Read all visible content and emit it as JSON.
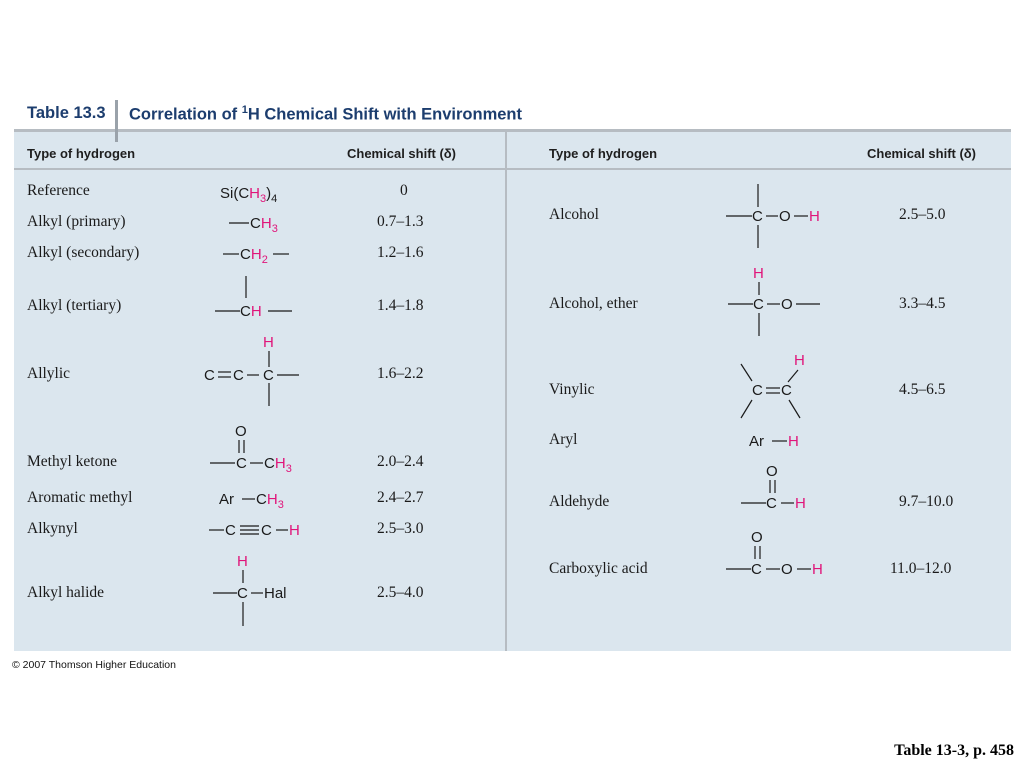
{
  "table": {
    "number": "Table 13.3",
    "caption_pre": "Correlation of ",
    "caption_sup": "1",
    "caption_post": "H Chemical Shift with Environment"
  },
  "headers": {
    "type": "Type of hydrogen",
    "shift": "Chemical shift (δ)"
  },
  "left_rows": [
    {
      "name": "Reference",
      "shift": "0"
    },
    {
      "name": "Alkyl (primary)",
      "shift": "0.7–1.3"
    },
    {
      "name": "Alkyl (secondary)",
      "shift": "1.2–1.6"
    },
    {
      "name": "Alkyl (tertiary)",
      "shift": "1.4–1.8"
    },
    {
      "name": "Allylic",
      "shift": "1.6–2.2"
    },
    {
      "name": "Methyl ketone",
      "shift": "2.0–2.4"
    },
    {
      "name": "Aromatic methyl",
      "shift": "2.4–2.7"
    },
    {
      "name": "Alkynyl",
      "shift": "2.5–3.0"
    },
    {
      "name": "Alkyl halide",
      "shift": "2.5–4.0"
    }
  ],
  "right_rows": [
    {
      "name": "Alcohol",
      "shift": "2.5–5.0"
    },
    {
      "name": "Alcohol, ether",
      "shift": "3.3–4.5"
    },
    {
      "name": "Vinylic",
      "shift": "4.5–6.5"
    },
    {
      "name": "Aryl",
      "shift": ""
    },
    {
      "name": "Aldehyde",
      "shift": "9.7–10.0"
    },
    {
      "name": "Carboxylic acid",
      "shift": "11.0–12.0"
    }
  ],
  "structures": {
    "reference": {
      "si": "Si(C",
      "h3": "H",
      "sub3": "3",
      "close": ")",
      "sub4": "4"
    },
    "primary": {
      "c": "C",
      "h": "H",
      "sub": "3"
    },
    "secondary": {
      "c": "C",
      "h": "H",
      "sub": "2"
    },
    "tertiary": {
      "c": "C",
      "h": "H"
    },
    "allylic": {
      "c1": "C",
      "eq": "═",
      "c2": "C",
      "c3": "C",
      "h": "H"
    },
    "methyl_ketone": {
      "o": "O",
      "c": "C",
      "c2": "C",
      "h": "H",
      "sub": "3"
    },
    "aromatic_methyl": {
      "ar": "Ar",
      "c": "C",
      "h": "H",
      "sub": "3"
    },
    "alkynyl": {
      "c1": "C",
      "triple": "≡",
      "c2": "C",
      "h": "H"
    },
    "alkyl_halide": {
      "h": "H",
      "c": "C",
      "hal": "Hal"
    },
    "alcohol": {
      "c": "C",
      "o": "O",
      "h": "H"
    },
    "alcohol_ether": {
      "h": "H",
      "c": "C",
      "o": "O"
    },
    "vinylic": {
      "c1": "C",
      "c2": "C",
      "h": "H"
    },
    "aryl": {
      "ar": "Ar",
      "h": "H"
    },
    "aldehyde": {
      "o": "O",
      "c": "C",
      "h": "H"
    },
    "carboxylic": {
      "o": "O",
      "c": "C",
      "o2": "O",
      "h": "H"
    }
  },
  "colors": {
    "highlight": "#e0157a",
    "panel": "#dbe6ee",
    "title": "#1c3d6e"
  },
  "footer": {
    "copyright": "© 2007 Thomson Higher Education",
    "page_ref": "Table 13-3, p. 458"
  }
}
